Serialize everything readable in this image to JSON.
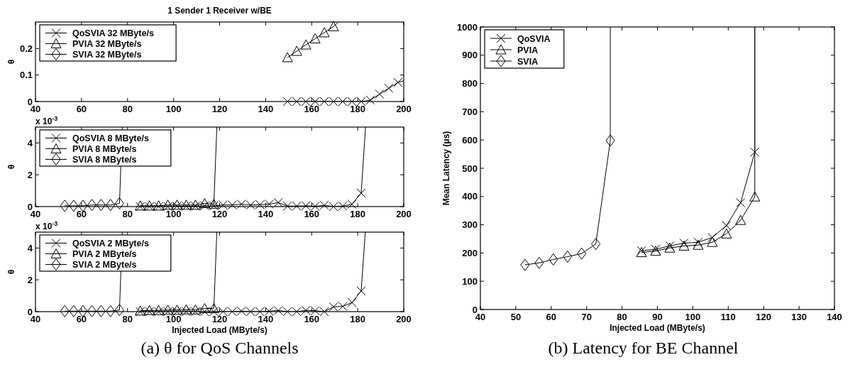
{
  "chart_data": [
    {
      "type": "line",
      "title": "1 Sender 1 Receiver w/BE",
      "ylabel": "θ",
      "xlim": [
        40,
        200
      ],
      "xticks": [
        40,
        60,
        80,
        100,
        120,
        140,
        160,
        180,
        200
      ],
      "ylim": [
        0,
        0.3
      ],
      "yticks": [
        0,
        0.1,
        0.2
      ],
      "legend": "top left",
      "series": [
        {
          "name": "QoSVIA 32 MByte/s",
          "color": "#000000",
          "marker": "cross",
          "x": [
            149.5,
            153.5,
            157.5,
            161.5,
            165.5,
            169.5,
            173.5,
            177.5,
            181.5,
            185.5,
            189.5,
            193.5,
            197.5,
            200
          ],
          "values": [
            0,
            0,
            0,
            0,
            0,
            0,
            0,
            0,
            0,
            0.005,
            0.028,
            0.05,
            0.072,
            0.078
          ]
        },
        {
          "name": "PVIA 32 MByte/s",
          "color": "#000000",
          "marker": "triangle",
          "x": [
            149.5,
            153.5,
            157.5,
            161.5,
            165.5,
            169.5,
            171.6
          ],
          "values": [
            0.166,
            0.19,
            0.214,
            0.237,
            0.26,
            0.283,
            0.3
          ]
        },
        {
          "name": "SVIA 32 MByte/s",
          "color": "#000000",
          "marker": "diamond"
        }
      ]
    },
    {
      "type": "line",
      "ylabel": "θ",
      "annotations": [
        "x 10$^{-3}$"
      ],
      "xlim": [
        40,
        200
      ],
      "xticks": [
        40,
        60,
        80,
        100,
        120,
        140,
        160,
        180,
        200
      ],
      "ylim": [
        0,
        5
      ],
      "yticks": [
        0,
        2,
        4
      ],
      "legend": "top left",
      "series": [
        {
          "name": "QoSVIA 8 MByte/s",
          "color": "#000000",
          "marker": "cross",
          "x": [
            85.5,
            89.5,
            93.5,
            97.5,
            101.5,
            105.5,
            109.5,
            113.5,
            117.5,
            121.5,
            125.5,
            129.5,
            133.5,
            137.5,
            141.5,
            145.5,
            149.5,
            153.5,
            157.5,
            161.5,
            165.5,
            169.5,
            173.5,
            177.5,
            181.5,
            183.4
          ],
          "values": [
            0,
            0,
            0,
            0,
            0.02,
            0.02,
            0.03,
            0.05,
            0.05,
            0.1,
            0.1,
            0.15,
            0.1,
            0.12,
            0.15,
            0.25,
            0.03,
            0.03,
            0.05,
            0.02,
            0.08,
            0,
            0.03,
            0.15,
            0.85,
            5
          ]
        },
        {
          "name": "PVIA 8 MByte/s",
          "color": "#000000",
          "marker": "triangle",
          "x": [
            85.5,
            89.5,
            93.5,
            97.5,
            101.5,
            105.5,
            109.5,
            113.5,
            117.5,
            118.8
          ],
          "values": [
            0.05,
            0.05,
            0.05,
            0.1,
            0.1,
            0.1,
            0.1,
            0.2,
            0.15,
            5
          ]
        },
        {
          "name": "SVIA 8 MByte/s",
          "color": "#000000",
          "marker": "diamond",
          "x": [
            52.7,
            56.6,
            60.6,
            64.5,
            68.5,
            72.6,
            76.5,
            77.7
          ],
          "values": [
            0.05,
            0.05,
            0.05,
            0.1,
            0.1,
            0.1,
            0.2,
            5
          ]
        }
      ]
    },
    {
      "type": "line",
      "ylabel": "θ",
      "xlabel": "Injected Load (MByte/s)",
      "annotations": [
        "x 10$^{-3}$",
        "(a) θ for QoS Channels"
      ],
      "xlim": [
        40,
        200
      ],
      "xticks": [
        40,
        60,
        80,
        100,
        120,
        140,
        160,
        180,
        200
      ],
      "ylim": [
        0,
        5
      ],
      "yticks": [
        0,
        2,
        4
      ],
      "legend": "top left",
      "series": [
        {
          "name": "QoSVIA 2 MByte/s",
          "color": "#000000",
          "marker": "cross",
          "x": [
            85.5,
            89.5,
            93.5,
            97.5,
            101.5,
            105.5,
            109.5,
            113.5,
            117.5,
            121.5,
            125.5,
            129.5,
            133.5,
            137.5,
            141.5,
            145.5,
            149.5,
            153.5,
            157.5,
            161.5,
            165.5,
            169.5,
            173.5,
            177.5,
            181.5,
            183.3
          ],
          "values": [
            0,
            0,
            0,
            0,
            0,
            0,
            0,
            0,
            0,
            0,
            0,
            0.03,
            0,
            0,
            0.03,
            0.07,
            0,
            0,
            0.08,
            0.06,
            0,
            0.3,
            0.33,
            0.57,
            1.3,
            5
          ]
        },
        {
          "name": "PVIA 2 MByte/s",
          "color": "#000000",
          "marker": "triangle",
          "x": [
            85.5,
            89.5,
            93.5,
            97.5,
            101.5,
            105.5,
            109.5,
            113.5,
            117.5,
            118.8
          ],
          "values": [
            0.05,
            0.08,
            0.08,
            0.1,
            0.1,
            0.12,
            0.12,
            0.2,
            0.2,
            5
          ]
        },
        {
          "name": "SVIA 2 MByte/s",
          "color": "#000000",
          "marker": "diamond",
          "x": [
            52.7,
            56.6,
            60.6,
            64.5,
            68.5,
            72.6,
            76.5,
            77.7
          ],
          "values": [
            0.03,
            0.03,
            0.03,
            0.03,
            0.03,
            0.03,
            0.1,
            5
          ]
        }
      ]
    },
    {
      "type": "line",
      "ylabel": "Mean Latency (μs)",
      "xlabel": "Injected Load (MByte/s)",
      "annotations": [
        "(b) Latency for BE Channel"
      ],
      "xlim": [
        40,
        140
      ],
      "xticks": [
        40,
        50,
        60,
        70,
        80,
        90,
        100,
        110,
        120,
        130,
        140
      ],
      "ylim": [
        0,
        1000
      ],
      "yticks": [
        0,
        100,
        200,
        300,
        400,
        500,
        600,
        700,
        800,
        900,
        1000
      ],
      "legend": "top left",
      "series": [
        {
          "name": "QoSVIA",
          "color": "#000000",
          "marker": "cross",
          "x": [
            85.5,
            89.5,
            93.5,
            97.5,
            101.5,
            105.5,
            109.5,
            113.5,
            117.5,
            117.5
          ],
          "values": [
            208,
            213,
            225,
            235,
            238,
            255,
            297,
            378,
            557,
            1000
          ]
        },
        {
          "name": "PVIA",
          "color": "#000000",
          "marker": "triangle",
          "x": [
            85.5,
            89.5,
            93.5,
            97.5,
            101.5,
            105.5,
            109.5,
            113.5,
            117.5,
            117.5
          ],
          "values": [
            202,
            207,
            218,
            225,
            228,
            238,
            268,
            316,
            399,
            1000
          ]
        },
        {
          "name": "SVIA",
          "color": "#000000",
          "marker": "diamond",
          "x": [
            52.6,
            56.6,
            60.6,
            64.6,
            68.6,
            72.6,
            76.7,
            76.7
          ],
          "values": [
            158,
            165,
            177,
            187,
            198,
            232,
            598,
            1000
          ]
        }
      ]
    }
  ]
}
